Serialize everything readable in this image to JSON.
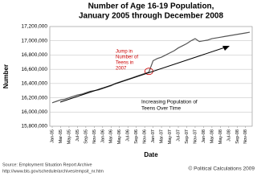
{
  "chart_data": {
    "type": "line",
    "title": [
      "Number of Age 16-19 Population,",
      "January 2005 through December 2008"
    ],
    "xlabel": "Date",
    "ylabel": "Number",
    "categories": [
      "Jan-05",
      null,
      "Mar-05",
      null,
      "May-05",
      null,
      "Jul-05",
      null,
      "Sep-05",
      null,
      "Nov-05",
      null,
      "Jan-06",
      null,
      "Mar-06",
      null,
      "May-06",
      null,
      "Jul-06",
      null,
      "Sep-06",
      null,
      "Nov-06",
      null,
      "Jan-07",
      null,
      "Mar-07",
      null,
      "May-07",
      null,
      "Jul-07",
      null,
      "Sep-07",
      null,
      "Nov-07",
      null,
      "Jan-08",
      null,
      "Mar-08",
      null,
      "May-08",
      null,
      "Jul-08",
      null,
      "Sep-08",
      null,
      "Nov-08",
      null
    ],
    "values": [
      16130000,
      16150000,
      16170000,
      16180000,
      16200000,
      16220000,
      16240000,
      16250000,
      16270000,
      16290000,
      16300000,
      16310000,
      16330000,
      16350000,
      16370000,
      16400000,
      16420000,
      16440000,
      16460000,
      16480000,
      16500000,
      16520000,
      16540000,
      16560000,
      16720000,
      16750000,
      16770000,
      16800000,
      16830000,
      16860000,
      16900000,
      16930000,
      16960000,
      17000000,
      17030000,
      16990000,
      17000000,
      17010000,
      17030000,
      17040000,
      17050000,
      17060000,
      17070000,
      17080000,
      17090000,
      17100000,
      17110000,
      17120000
    ],
    "color": "#555555",
    "ylim": [
      15800000,
      17200000
    ],
    "yticks": [
      {
        "value": 15800000,
        "label": "15,800,000"
      },
      {
        "value": 16000000,
        "label": "16,000,000"
      },
      {
        "value": 16200000,
        "label": "16,200,000"
      },
      {
        "value": 16400000,
        "label": "16,400,000"
      },
      {
        "value": 16600000,
        "label": "16,600,000"
      },
      {
        "value": 16800000,
        "label": "16,800,000"
      },
      {
        "value": 17000000,
        "label": "17,000,000"
      },
      {
        "value": 17200000,
        "label": "17,200,000"
      }
    ],
    "grid": true,
    "annotations": [
      {
        "lines": [
          "Jump in",
          "Number of",
          "Teens in",
          "2007"
        ],
        "color": "#cc0000"
      },
      {
        "lines": [
          "Increasing Population of",
          "Teens Over Time"
        ],
        "color": "#000000"
      }
    ],
    "source": [
      "Source: Employment Situation Report Archive",
      "http://www.bls.gov/schedule/archives/empsit_nr.htm"
    ],
    "credit": "© Political Calculations 2009"
  }
}
